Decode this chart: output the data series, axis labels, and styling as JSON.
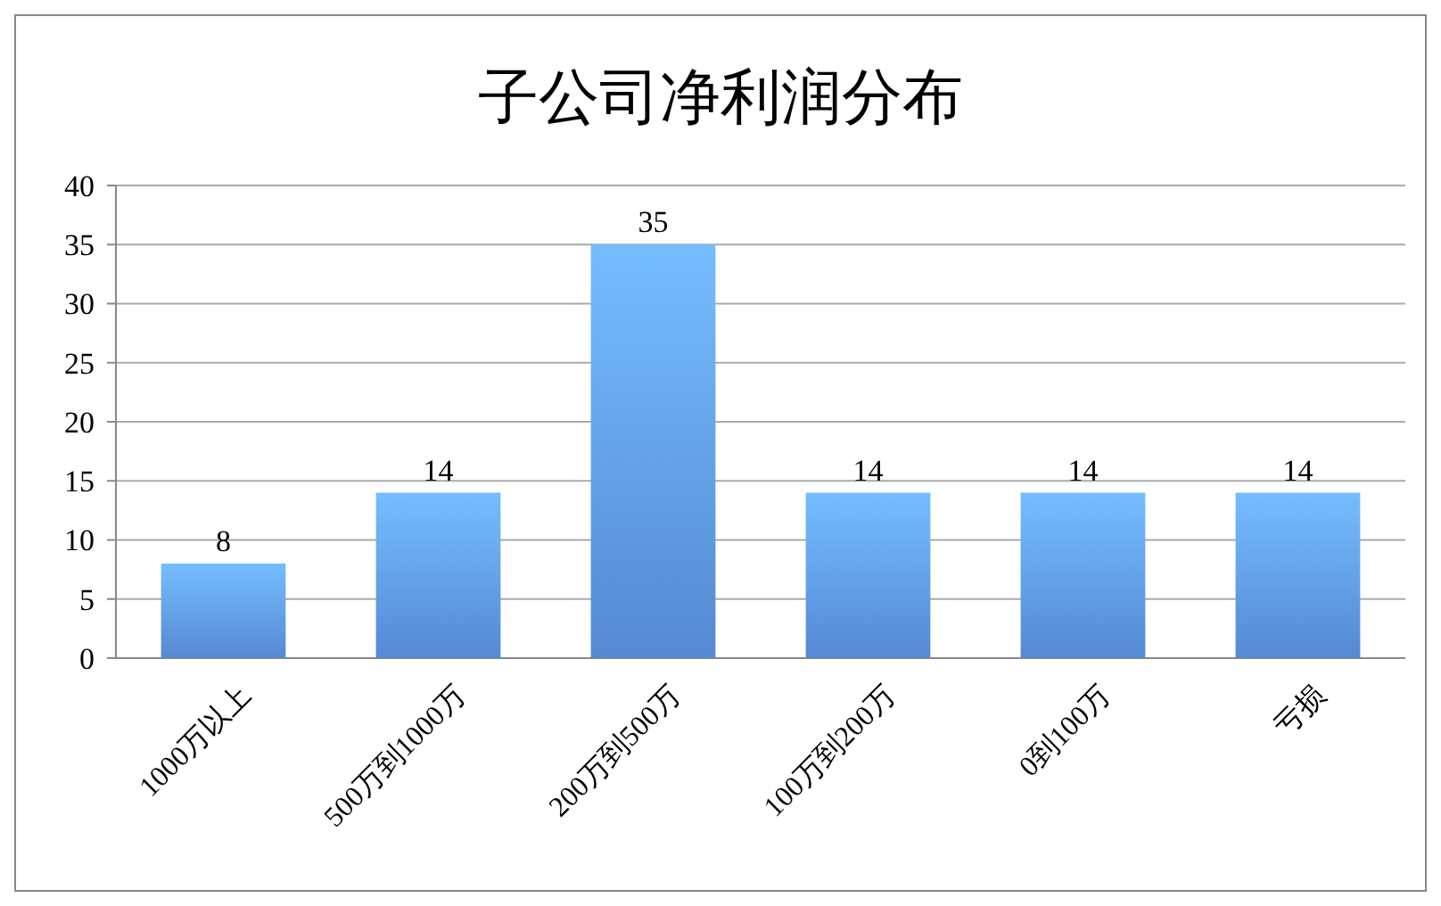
{
  "chart_data": {
    "type": "bar",
    "title": "子公司净利润分布",
    "categories": [
      "1000万以上",
      "500万到1000万",
      "200万到500万",
      "100万到200万",
      "0到100万",
      "亏损"
    ],
    "values": [
      8,
      14,
      35,
      14,
      14,
      14
    ],
    "color": "#5b93e3",
    "ylim": [
      0,
      40
    ],
    "yticks": [
      0,
      5,
      10,
      15,
      20,
      25,
      30,
      35,
      40
    ],
    "grid": "y",
    "data_labels": true
  }
}
